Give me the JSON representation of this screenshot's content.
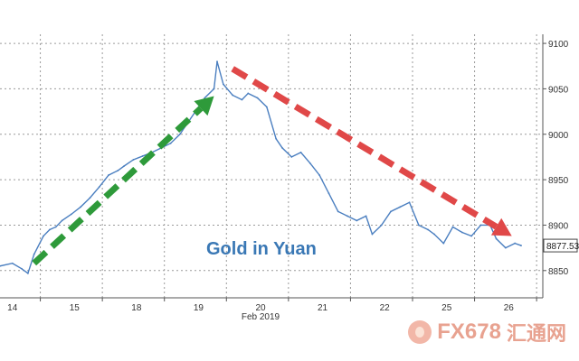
{
  "chart_data": {
    "type": "line",
    "title": "Gold in Yuan",
    "xlabel": "Feb 2019",
    "ylabel": "",
    "ylim": [
      8820,
      9110
    ],
    "x_ticks": [
      "14",
      "15",
      "18",
      "19",
      "20",
      "21",
      "22",
      "25",
      "26"
    ],
    "y_ticks": [
      8850,
      8900,
      8950,
      9000,
      9050,
      9100
    ],
    "last_value_label": "8877.53",
    "series": [
      {
        "x": [
          0.0,
          0.2,
          0.35,
          0.45,
          0.55,
          0.7,
          0.8,
          0.9,
          1.0,
          1.15,
          1.3,
          1.45,
          1.6,
          1.75,
          1.9,
          2.0,
          2.15,
          2.3,
          2.45,
          2.6,
          2.75,
          2.9,
          3.0,
          3.15,
          3.3,
          3.45,
          3.5,
          3.6,
          3.75,
          3.9,
          4.0,
          4.15,
          4.3,
          4.45,
          4.55,
          4.7,
          4.85,
          5.0,
          5.15,
          5.3,
          5.45,
          5.6,
          5.75,
          5.9,
          6.0,
          6.15,
          6.3,
          6.45,
          6.6,
          6.75,
          6.9,
          7.0,
          7.15,
          7.3,
          7.45,
          7.6,
          7.75,
          7.9,
          8.0,
          8.15,
          8.3,
          8.4
        ],
        "values": [
          8855,
          8858,
          8852,
          8847,
          8868,
          8888,
          8895,
          8898,
          8905,
          8912,
          8920,
          8930,
          8942,
          8955,
          8960,
          8965,
          8972,
          8976,
          8980,
          8985,
          8990,
          9000,
          9010,
          9025,
          9040,
          9050,
          9080,
          9055,
          9043,
          9038,
          9045,
          9040,
          9030,
          8995,
          8985,
          8975,
          8980,
          8968,
          8955,
          8935,
          8915,
          8910,
          8905,
          8910,
          8890,
          8900,
          8915,
          8920,
          8925,
          8900,
          8895,
          8890,
          8880,
          8898,
          8892,
          8888,
          8900,
          8900,
          8885,
          8875,
          8880,
          8877.53
        ]
      }
    ],
    "annotations": [
      {
        "type": "arrow",
        "color": "#2e9a3a",
        "from": {
          "x": 0.55,
          "y": 8858
        },
        "to": {
          "x": 3.45,
          "y": 9042
        }
      },
      {
        "type": "arrow",
        "color": "#e04848",
        "from": {
          "x": 3.75,
          "y": 9072
        },
        "to": {
          "x": 8.25,
          "y": 8888
        }
      }
    ],
    "colors": {
      "line": "#4b7fc0",
      "grid": "#9a9a9a",
      "title": "#3a78b5"
    }
  },
  "watermark": {
    "brand": "FX678",
    "cn": "汇通网"
  }
}
